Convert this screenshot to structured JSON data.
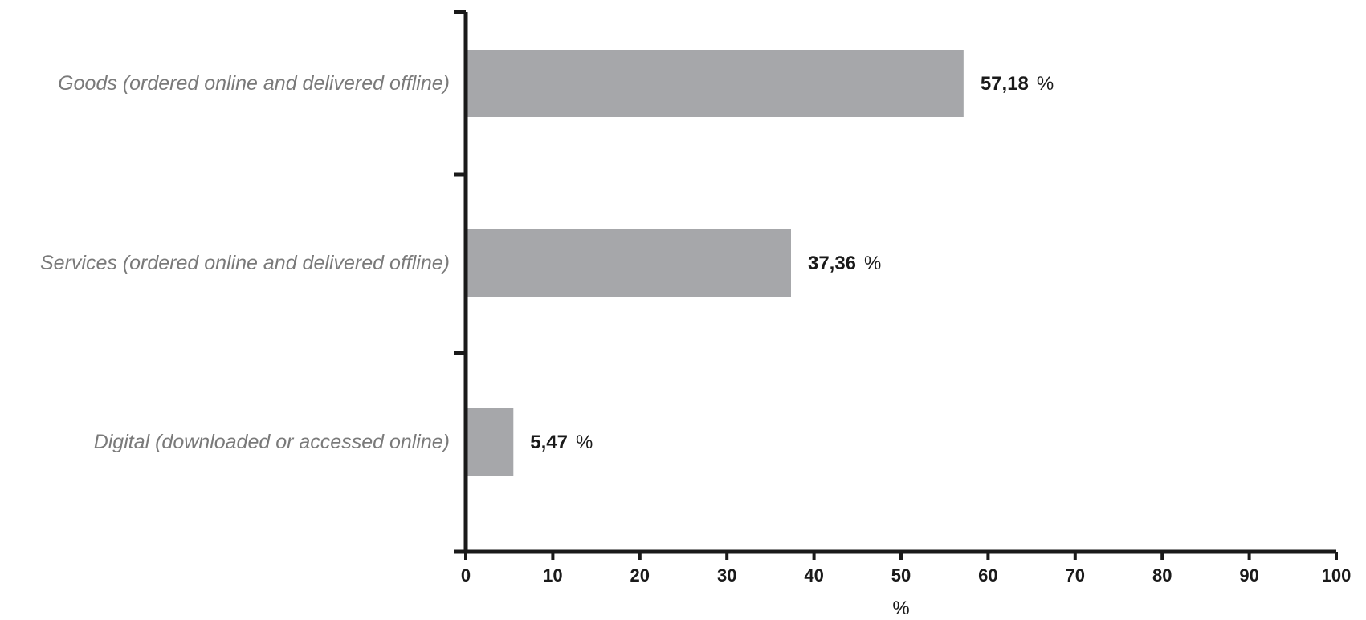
{
  "chart_data": {
    "type": "bar",
    "orientation": "horizontal",
    "categories": [
      "Goods (ordered online and delivered offline)",
      "Services (ordered online and delivered offline)",
      "Digital (downloaded or accessed online)"
    ],
    "values": [
      57.18,
      37.36,
      5.47
    ],
    "data_labels": [
      "57,18",
      "37,36",
      "5,47"
    ],
    "value_unit": "%",
    "title": "",
    "xlabel": "%",
    "ylabel": "",
    "xlim": [
      0,
      100
    ],
    "xticks": [
      "0",
      "10",
      "20",
      "30",
      "40",
      "50",
      "60",
      "70",
      "80",
      "90",
      "100"
    ],
    "grid": false,
    "legend": "none",
    "bar_color": "#a6a7aa",
    "axis_color": "#1a1a1a"
  }
}
